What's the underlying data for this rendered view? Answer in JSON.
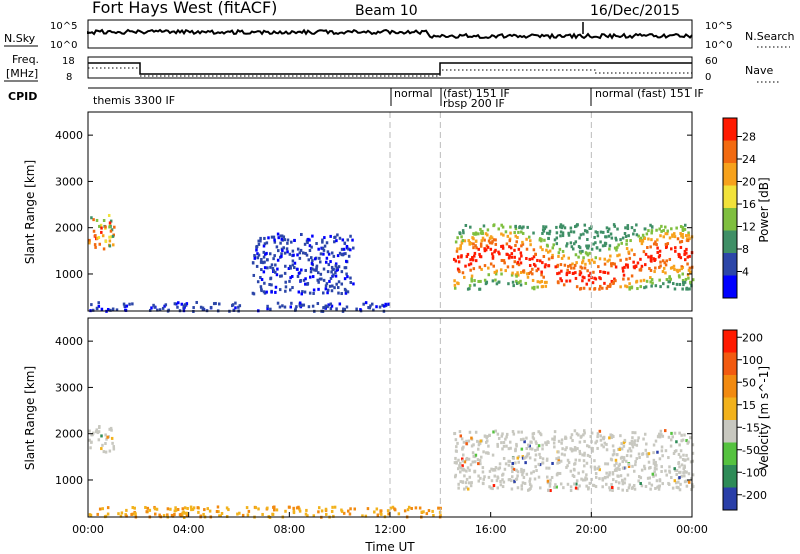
{
  "header": {
    "station": "Fort Hays West (fitACF)",
    "beam": "Beam 10",
    "date": "16/Dec/2015"
  },
  "top_panel": {
    "left_label": "N.Sky",
    "left_ticks": [
      "10^5",
      "10^0"
    ],
    "right_ticks": [
      "10^5",
      "10^0"
    ],
    "right_label": "N.Search"
  },
  "freq_panel": {
    "left_label": "Freq.",
    "left_unit": "[MHz]",
    "left_ticks": [
      "18",
      "8"
    ],
    "right_ticks": [
      "60",
      "0"
    ],
    "right_label": "Nave"
  },
  "cpid": {
    "label": "CPID",
    "segments": [
      {
        "text": "themis 3300 IF",
        "start_h": 0,
        "end_h": 12
      },
      {
        "text": "normal",
        "start_h": 12,
        "end_h": 14
      },
      {
        "text": "(fast) 151 IF",
        "start_h": 14,
        "end_h": 20
      },
      {
        "text": "rbsp 200 IF",
        "start_h": 14,
        "end_h": 20
      },
      {
        "text": "normal (fast) 151 IF",
        "start_h": 20,
        "end_h": 24
      }
    ]
  },
  "chart_data": [
    {
      "type": "heatmap",
      "panel": "power",
      "ylabel": "Slant Range [km]",
      "ylim": [
        200,
        4500
      ],
      "yticks": [
        1000,
        2000,
        3000,
        4000
      ],
      "xlim_hours": [
        0,
        24
      ],
      "mode_boundaries_h": [
        12,
        14,
        20
      ],
      "colorbar": {
        "label": "Power [dB]",
        "ticks": [
          4,
          8,
          12,
          16,
          20,
          24,
          28
        ],
        "colors": [
          "#0000ff",
          "#2c46a8",
          "#3f8f66",
          "#7fbf3f",
          "#f2e23a",
          "#f7a21c",
          "#f26a10",
          "#ff1a00"
        ]
      },
      "regions": [
        {
          "t_start": 0.0,
          "t_end": 1.0,
          "r_low": 1500,
          "r_high": 2300,
          "level": "mixed-high"
        },
        {
          "t_start": 0.0,
          "t_end": 12.0,
          "r_low": 220,
          "r_high": 420,
          "level": "low"
        },
        {
          "t_start": 6.5,
          "t_end": 10.5,
          "r_low": 600,
          "r_high": 1900,
          "level": "low"
        },
        {
          "t_start": 14.5,
          "t_end": 24.0,
          "r_low": 700,
          "r_high": 2100,
          "level": "high"
        }
      ]
    },
    {
      "type": "heatmap",
      "panel": "velocity",
      "ylabel": "Slant Range [km]",
      "ylim": [
        200,
        4500
      ],
      "yticks": [
        1000,
        2000,
        3000,
        4000
      ],
      "xlim_hours": [
        0,
        24
      ],
      "xlabel": "Time UT",
      "xticks": [
        "00:00",
        "04:00",
        "08:00",
        "12:00",
        "16:00",
        "20:00",
        "00:00"
      ],
      "colorbar": {
        "label": "Velocity [m s^-1]",
        "ticks": [
          "200",
          "100",
          "50",
          "15",
          "-15",
          "-50",
          "-100",
          "-200"
        ],
        "colors": [
          "#2a3fa8",
          "#2e8b57",
          "#55c23f",
          "#c8c8c0",
          "#f2b21c",
          "#f28a10",
          "#f25a10",
          "#ff1a00"
        ]
      },
      "regions": [
        {
          "t_start": 0.0,
          "t_end": 1.0,
          "r_low": 1600,
          "r_high": 2200,
          "level": "ground-scatter"
        },
        {
          "t_start": 0.0,
          "t_end": 14.0,
          "r_low": 220,
          "r_high": 450,
          "level": "negative"
        },
        {
          "t_start": 14.5,
          "t_end": 24.0,
          "r_low": 800,
          "r_high": 2100,
          "level": "ground-scatter"
        }
      ]
    }
  ]
}
